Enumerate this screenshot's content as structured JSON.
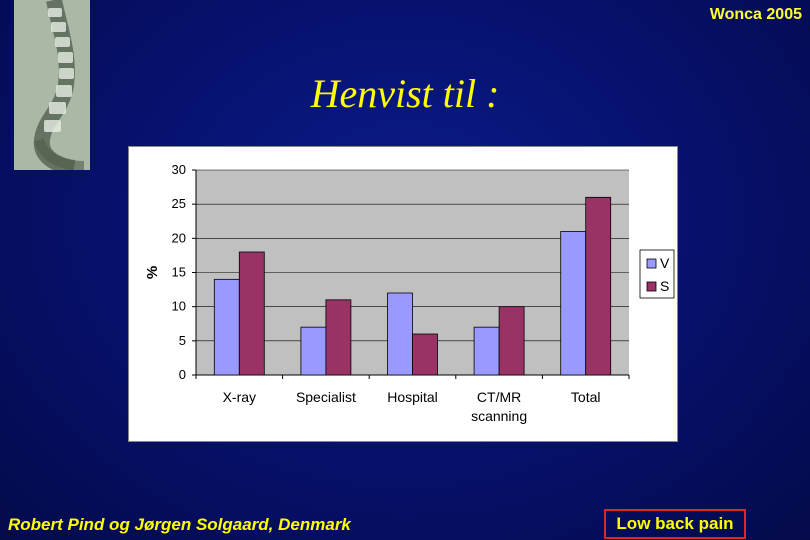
{
  "header": {
    "conference": "Wonca 2005"
  },
  "slide": {
    "title": "Henvist til :"
  },
  "footer": {
    "author": "Robert  Pind og Jørgen Solgaard, Denmark",
    "topic": "Low back pain"
  },
  "colors": {
    "series_V": "#9999ff",
    "series_S": "#993366",
    "plot_bg": "#c0c0c0",
    "title": "#ffff00",
    "topic_border": "#e0261f"
  },
  "chart_data": {
    "type": "bar",
    "categories": [
      "X-ray",
      "Specialist",
      "Hospital",
      "CT/MR scanning",
      "Total"
    ],
    "category_lines": [
      [
        "X-ray"
      ],
      [
        "Specialist"
      ],
      [
        "Hospital"
      ],
      [
        "CT/MR",
        "scanning"
      ],
      [
        "Total"
      ]
    ],
    "series": [
      {
        "name": "V",
        "values": [
          14,
          7,
          12,
          7,
          21
        ]
      },
      {
        "name": "S",
        "values": [
          18,
          11,
          6,
          10,
          26
        ]
      }
    ],
    "ylabel": "%",
    "ylim": [
      0,
      30
    ],
    "yticks": [
      0,
      5,
      10,
      15,
      20,
      25,
      30
    ],
    "grid": true,
    "legend": "right"
  }
}
